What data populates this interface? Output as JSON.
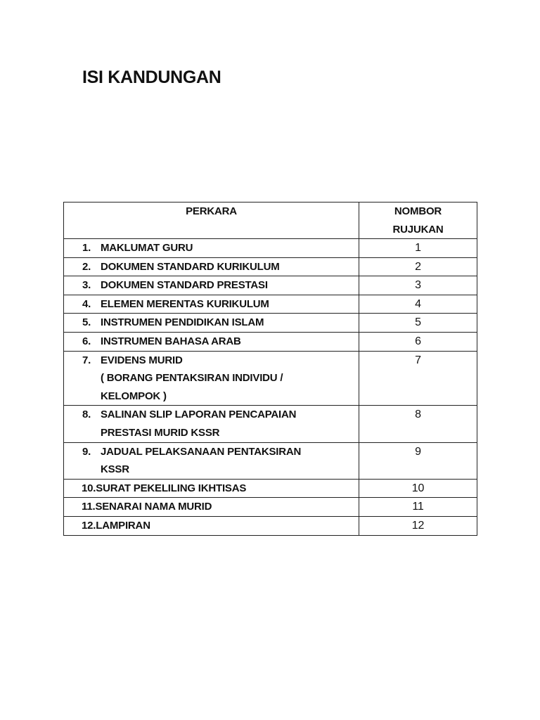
{
  "title": "ISI KANDUNGAN",
  "table": {
    "headers": {
      "item": "PERKARA",
      "ref_line1": "NOMBOR",
      "ref_line2": "RUJUKAN"
    },
    "rows": [
      {
        "num": "1.",
        "lines": [
          "MAKLUMAT GURU"
        ],
        "ref": "1"
      },
      {
        "num": "2.",
        "lines": [
          "DOKUMEN STANDARD KURIKULUM"
        ],
        "ref": "2"
      },
      {
        "num": "3.",
        "lines": [
          "DOKUMEN STANDARD PRESTASI"
        ],
        "ref": "3"
      },
      {
        "num": "4.",
        "lines": [
          "ELEMEN MERENTAS KURIKULUM"
        ],
        "ref": "4"
      },
      {
        "num": "5.",
        "lines": [
          "INSTRUMEN PENDIDIKAN ISLAM"
        ],
        "ref": "5"
      },
      {
        "num": "6.",
        "lines": [
          "INSTRUMEN BAHASA ARAB"
        ],
        "ref": "6"
      },
      {
        "num": "7.",
        "lines": [
          "EVIDENS MURID",
          "( BORANG PENTAKSIRAN INDIVIDU /",
          "KELOMPOK )"
        ],
        "ref": "7"
      },
      {
        "num": "8.",
        "lines": [
          "SALINAN SLIP LAPORAN PENCAPAIAN",
          "PRESTASI MURID KSSR"
        ],
        "ref": "8"
      },
      {
        "num": "9.",
        "lines": [
          "JADUAL PELAKSANAAN PENTAKSIRAN",
          "KSSR"
        ],
        "ref": "9"
      },
      {
        "num": "10.",
        "lines": [
          "SURAT PEKELILING IKHTISAS"
        ],
        "ref": "10"
      },
      {
        "num": "11.",
        "lines": [
          "SENARAI NAMA MURID"
        ],
        "ref": "11"
      },
      {
        "num": "12.",
        "lines": [
          "LAMPIRAN"
        ],
        "ref": "12"
      }
    ]
  }
}
